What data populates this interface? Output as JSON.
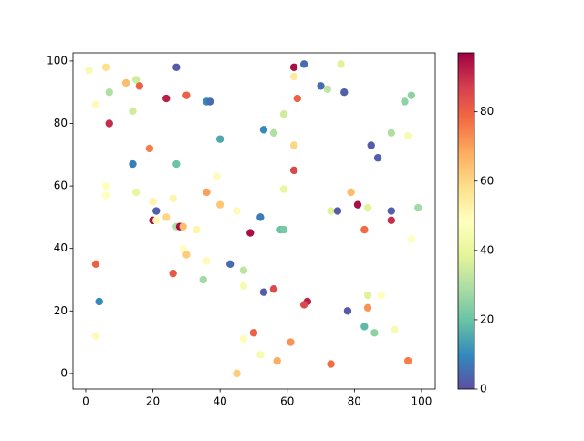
{
  "chart_data": {
    "type": "scatter",
    "x": [
      1,
      6,
      27,
      62,
      65,
      76,
      3,
      7,
      12,
      15,
      16,
      24,
      30,
      36,
      37,
      62,
      70,
      72,
      77,
      14,
      7,
      63,
      95,
      97,
      40,
      59,
      53,
      56,
      91,
      96,
      85,
      87,
      62,
      19,
      14,
      27,
      62,
      39,
      6,
      6,
      15,
      36,
      59,
      79,
      20,
      26,
      40,
      81,
      84,
      73,
      75,
      91,
      99,
      45,
      21,
      20,
      21,
      24,
      52,
      91,
      27,
      28,
      29,
      33,
      49,
      58,
      59,
      83,
      97,
      29,
      30,
      36,
      43,
      3,
      26,
      47,
      35,
      47,
      53,
      56,
      66,
      65,
      4,
      84,
      88,
      84,
      78,
      83,
      86,
      92,
      3,
      50,
      47,
      52,
      57,
      61,
      73,
      96,
      45
    ],
    "y": [
      97,
      98,
      98,
      98,
      99,
      99,
      86,
      90,
      93,
      94,
      92,
      88,
      89,
      87,
      87,
      95,
      92,
      91,
      90,
      84,
      80,
      88,
      87,
      89,
      75,
      83,
      78,
      77,
      77,
      76,
      73,
      69,
      73,
      72,
      67,
      67,
      65,
      63,
      60,
      57,
      58,
      58,
      59,
      58,
      55,
      56,
      54,
      54,
      53,
      52,
      52,
      52,
      53,
      52,
      52,
      49,
      49,
      50,
      50,
      49,
      47,
      47,
      47,
      46,
      45,
      46,
      46,
      46,
      43,
      40,
      38,
      36,
      35,
      35,
      32,
      33,
      30,
      28,
      26,
      27,
      23,
      22,
      23,
      25,
      25,
      21,
      20,
      15,
      13,
      14,
      12,
      13,
      11,
      6,
      4,
      10,
      3,
      4,
      0
    ],
    "color_values": [
      45,
      58,
      2,
      95,
      5,
      38,
      50,
      30,
      65,
      35,
      80,
      92,
      80,
      10,
      5,
      55,
      5,
      32,
      3,
      35,
      90,
      80,
      25,
      25,
      15,
      35,
      10,
      30,
      30,
      45,
      2,
      3,
      60,
      75,
      8,
      20,
      85,
      50,
      48,
      48,
      40,
      70,
      40,
      65,
      52,
      52,
      63,
      95,
      38,
      38,
      2,
      3,
      28,
      50,
      3,
      95,
      50,
      60,
      8,
      90,
      30,
      95,
      65,
      52,
      95,
      20,
      22,
      78,
      48,
      48,
      62,
      50,
      5,
      80,
      82,
      32,
      28,
      45,
      2,
      85,
      92,
      85,
      10,
      38,
      48,
      72,
      2,
      18,
      25,
      45,
      50,
      80,
      47,
      45,
      68,
      72,
      78,
      75,
      62
    ],
    "colormap": "Spectral_r",
    "clim": [
      0,
      97
    ],
    "cticks": [
      0,
      20,
      40,
      60,
      80
    ],
    "xlim": [
      -3.8,
      104.1
    ],
    "xticks": [
      0,
      20,
      40,
      60,
      80,
      100
    ],
    "ylim": [
      -5,
      102.6
    ],
    "yticks": [
      0,
      20,
      40,
      60,
      80,
      100
    ]
  }
}
